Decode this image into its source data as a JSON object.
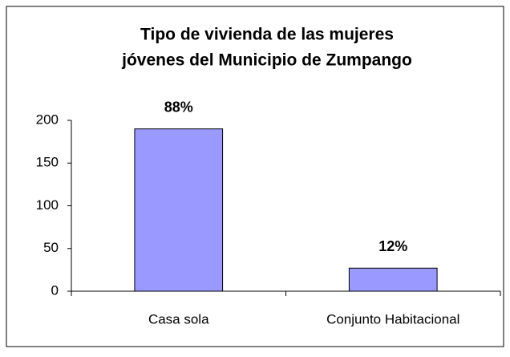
{
  "chart_data": {
    "type": "bar",
    "title": [
      "Tipo de vivienda de las mujeres",
      "jóvenes del Municipio de Zumpango"
    ],
    "categories": [
      "Casa sola",
      "Conjunto Habitacional"
    ],
    "values": [
      190,
      27
    ],
    "annotations": [
      "88%",
      "12%"
    ],
    "color": "#9999ff",
    "ylim": [
      0,
      200
    ],
    "yticks": [
      0,
      50,
      100,
      150,
      200
    ],
    "grid": false
  }
}
